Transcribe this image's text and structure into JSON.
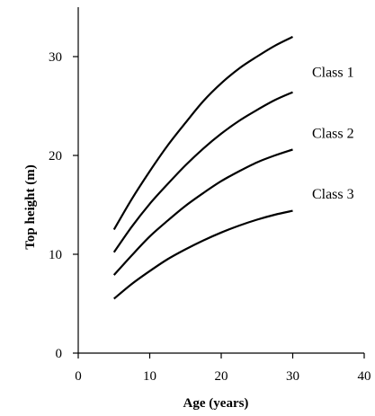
{
  "chart_data": {
    "type": "line",
    "title": "",
    "xlabel": "Age (years)",
    "ylabel": "Top height (m)",
    "xlim": [
      0,
      40
    ],
    "ylim": [
      0,
      35
    ],
    "xticks": [
      0,
      10,
      20,
      30,
      40
    ],
    "yticks": [
      0,
      10,
      20,
      30
    ],
    "grid": false,
    "legend": "none",
    "line_color": "#000000",
    "x": [
      5,
      7.5,
      10,
      12.5,
      15,
      17.5,
      20,
      22.5,
      25,
      27.5,
      30
    ],
    "series": [
      {
        "values": [
          12.5,
          15.6,
          18.4,
          21.0,
          23.3,
          25.5,
          27.3,
          28.8,
          30.0,
          31.1,
          32.0
        ]
      },
      {
        "values": [
          10.2,
          12.8,
          15.1,
          17.1,
          19.0,
          20.7,
          22.2,
          23.5,
          24.6,
          25.6,
          26.4
        ]
      },
      {
        "values": [
          7.9,
          9.9,
          11.8,
          13.4,
          14.9,
          16.2,
          17.4,
          18.4,
          19.3,
          20.0,
          20.6
        ]
      },
      {
        "values": [
          5.5,
          7.0,
          8.3,
          9.5,
          10.5,
          11.4,
          12.2,
          12.9,
          13.5,
          14.0,
          14.4
        ]
      }
    ],
    "annotations": [
      "Class 1",
      "Class 2",
      "Class 3"
    ]
  }
}
